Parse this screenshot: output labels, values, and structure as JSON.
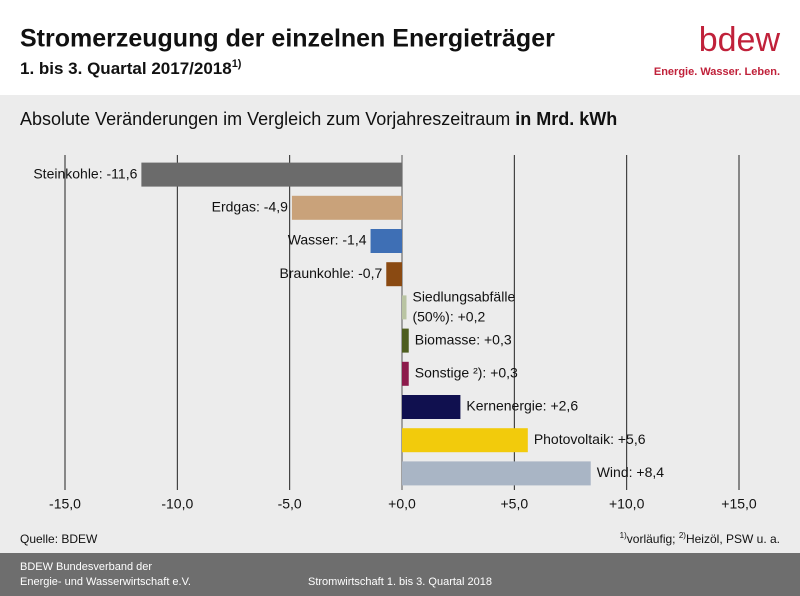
{
  "header": {
    "title": "Stromerzeugung der einzelnen Energieträger",
    "subtitle": "1. bis 3. Quartal 2017/2018",
    "subtitle_sup": "1)",
    "logo": "bdew",
    "tagline": "Energie. Wasser. Leben."
  },
  "chart_data": {
    "type": "bar",
    "orientation": "horizontal",
    "subtitle": "Absolute Veränderungen im Vergleich zum Vorjahreszeitraum",
    "unit": "in Mrd. kWh",
    "values": [
      -11.6,
      -4.9,
      -1.4,
      -0.7,
      0.2,
      0.3,
      0.3,
      2.6,
      5.6,
      8.4
    ],
    "value_labels": [
      "Steinkohle: -11,6",
      "Erdgas: -4,9",
      "Wasser: -1,4",
      "Braunkohle: -0,7",
      "Siedlungsabfälle (50%): +0,2",
      "Biomasse: +0,3",
      "Sonstige ²): +0,3",
      "Kernenergie: +2,6",
      "Photovoltaik: +5,6",
      "Wind: +8,4"
    ],
    "colors": [
      "#6b6b6b",
      "#c9a27a",
      "#3e6fb5",
      "#8a4a12",
      "#b9c4a2",
      "#4e5e1f",
      "#8c1b4b",
      "#10104f",
      "#f2cb0c",
      "#a9b5c5"
    ],
    "xlim": [
      -15,
      15
    ],
    "xticks": [
      {
        "value": -15,
        "label": "-15,0"
      },
      {
        "value": -10,
        "label": "-10,0"
      },
      {
        "value": -5,
        "label": "-5,0"
      },
      {
        "value": 0,
        "label": "+0,0"
      },
      {
        "value": 5,
        "label": "+5,0"
      },
      {
        "value": 10,
        "label": "+10,0"
      },
      {
        "value": 15,
        "label": "+15,0"
      }
    ],
    "grid": true
  },
  "footer": {
    "source": "Quelle: BDEW",
    "note1_mark": "1)",
    "note1": "vorläufig;",
    "note2_mark": "2)",
    "note2": "Heizöl, PSW u. a.",
    "org_line1": "BDEW Bundesverband der",
    "org_line2": "Energie- und Wasserwirtschaft e.V.",
    "center": "Stromwirtschaft 1. bis 3. Quartal 2018"
  }
}
